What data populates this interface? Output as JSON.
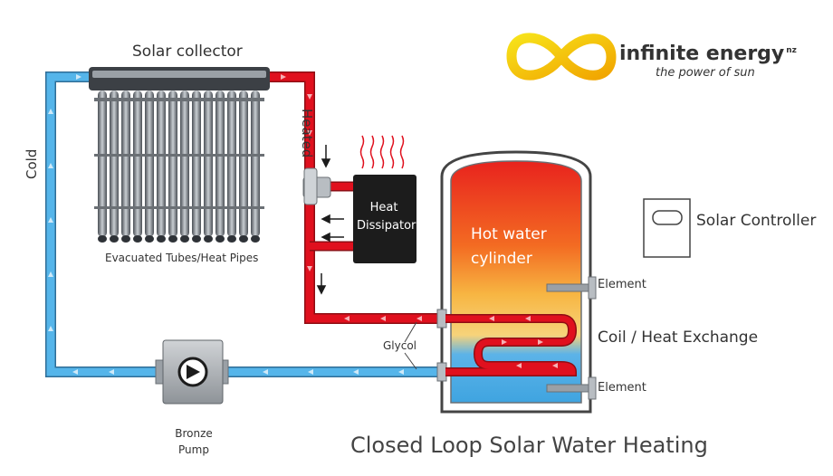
{
  "brand": {
    "name": "infinite energy",
    "suffix": "nz",
    "tagline": "the power of sun",
    "colors": {
      "yellow": "#f5d90a",
      "orange": "#f2a900"
    }
  },
  "title": "Closed Loop Solar Water Heating",
  "labels": {
    "solar_collector": "Solar collector",
    "evacuated_tubes": "Evacuated Tubes/Heat Pipes",
    "heated": "Heated",
    "cold": "Cold",
    "heat_dissipator_line1": "Heat",
    "heat_dissipator_line2": "Dissipator",
    "hot_water_line1": "Hot water",
    "hot_water_line2": "cylinder",
    "element_top": "Element",
    "element_bottom": "Element",
    "coil": "Coil / Heat Exchange",
    "glycol": "Glycol",
    "pump_line1": "Bronze",
    "pump_line2": "Pump",
    "solar_controller": "Solar Controller"
  },
  "colors": {
    "hot_pipe": "#e0101e",
    "cold_pipe": "#4aaee6",
    "dissipator": "#1c1c1c",
    "tank_outline": "#444444"
  }
}
